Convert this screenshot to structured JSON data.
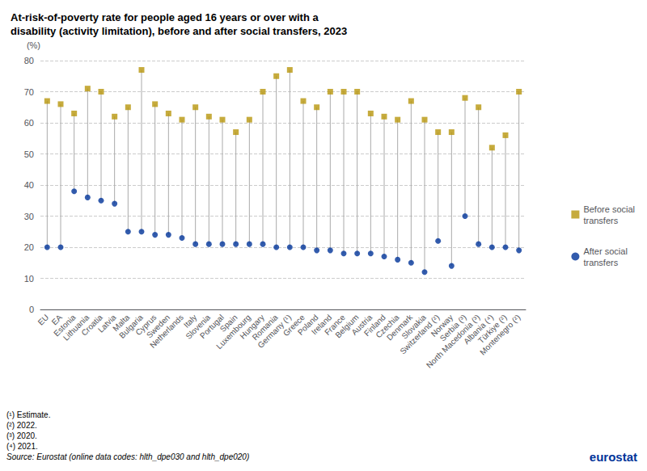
{
  "chart_data": {
    "type": "dumbbell",
    "title": "At-risk-of-poverty rate for people aged 16 years or over with a\ndisability (activity limitation), before and after social transfers, 2023",
    "ylabel": "(%)",
    "categories": [
      "EU",
      "EA",
      "Estonia",
      "Lithuania",
      "Croatia",
      "Latvia",
      "Malta",
      "Bulgaria",
      "Cyprus",
      "Sweden",
      "Netherlands",
      "Italy",
      "Slovenia",
      "Portugal",
      "Spain",
      "Luxembourg",
      "Hungary",
      "Romania",
      "Germany (¹)",
      "Greece",
      "Poland",
      "Ireland",
      "France",
      "Belgium",
      "Austria",
      "Finland",
      "Czechia",
      "Denmark",
      "Slovakia",
      "Switzerland (²)",
      "Norway",
      "Serbia (³)",
      "North Macedonia (³)",
      "Albania (⁴)",
      "Türkiye (²)",
      "Montenegro (²)"
    ],
    "series": [
      {
        "name": "Before social\ntransfers",
        "color": "#B8960C",
        "marker": "square",
        "values": [
          67,
          66,
          63,
          71,
          70,
          62,
          65,
          77,
          66,
          63,
          61,
          65,
          62,
          61,
          57,
          61,
          70,
          75,
          77,
          67,
          65,
          70,
          70,
          70,
          63,
          62,
          61,
          67,
          61,
          57,
          57,
          68,
          65,
          52,
          56,
          70
        ]
      },
      {
        "name": "After social\ntransfers",
        "color": "#003399",
        "marker": "circle",
        "values": [
          20,
          20,
          38,
          36,
          35,
          34,
          25,
          25,
          24,
          24,
          23,
          21,
          21,
          21,
          21,
          21,
          21,
          20,
          20,
          20,
          19,
          19,
          18,
          18,
          18,
          17,
          16,
          15,
          12,
          22,
          14,
          30,
          21,
          20,
          20,
          19
        ]
      }
    ],
    "ylim": [
      0,
      80
    ],
    "yticks": [
      0,
      10,
      20,
      30,
      40,
      50,
      60,
      70,
      80
    ],
    "grid": true,
    "legend": "right",
    "annotations": [
      "(¹) Estimate.",
      "(²) 2022.",
      "(³) 2020.",
      "(⁴) 2021.",
      "Source: Eurostat (online data codes: hlth_dpe030 and hlth_dpe020)",
      "eurostat"
    ]
  }
}
